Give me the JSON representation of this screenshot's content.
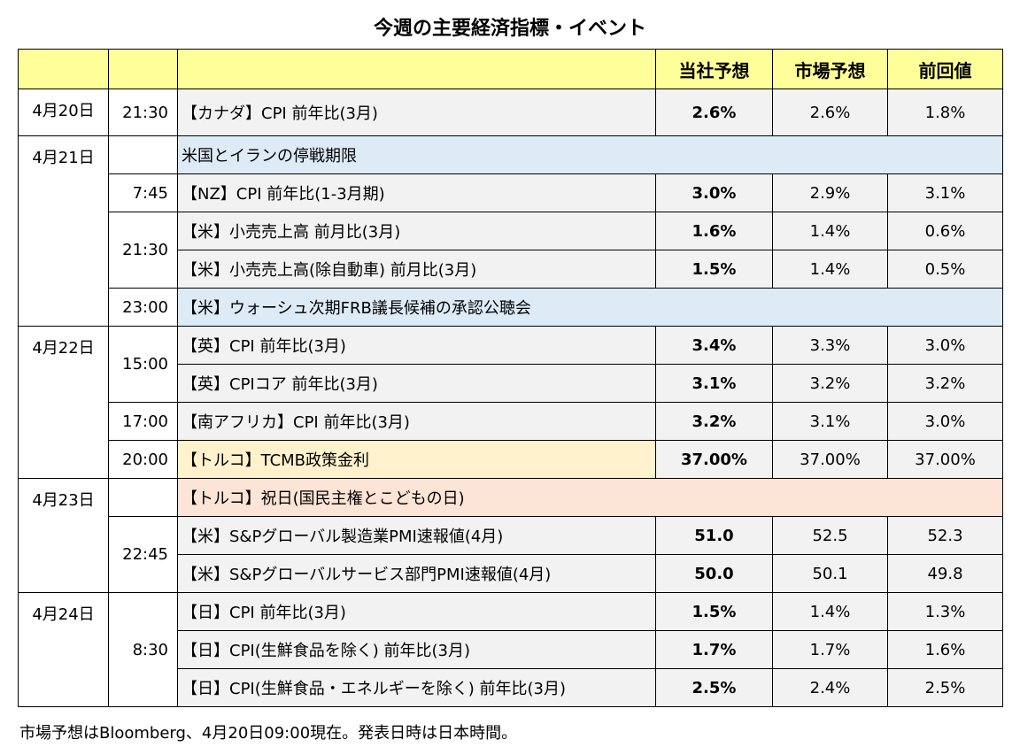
{
  "title": "今週の主要経済指標・イベント",
  "headers": [
    "",
    "",
    "",
    "当社予想",
    "市場予想",
    "前回値"
  ],
  "colors": {
    "header": "#ffff99",
    "blue": "#ddebf7",
    "turkey": "#fff2cc",
    "holiday": "#fce4d6",
    "cell": "#f2f2f2"
  },
  "rows": [
    {
      "date": "4月20日",
      "date_span": 1,
      "time": "21:30",
      "time_span": 1,
      "event": "【カナダ】CPI 前年比(3月)",
      "ours": "2.6%",
      "market": "2.6%",
      "prev": "1.8%"
    },
    {
      "date": "4月21日",
      "date_span": 5,
      "time": "",
      "time_span": 1,
      "event": " 米国とイランの停戦期限",
      "full": "blue"
    },
    {
      "time": "7:45",
      "time_span": 1,
      "event": "【NZ】CPI 前年比(1-3月期)",
      "ours": "3.0%",
      "market": "2.9%",
      "prev": "3.1%"
    },
    {
      "time": "21:30",
      "time_span": 2,
      "event": "【米】小売売上高 前月比(3月)",
      "ours": "1.6%",
      "market": "1.4%",
      "prev": "0.6%"
    },
    {
      "event": "【米】小売売上高(除自動車) 前月比(3月)",
      "ours": "1.5%",
      "market": "1.4%",
      "prev": "0.5%"
    },
    {
      "time": "23:00",
      "time_span": 1,
      "event": "【米】ウォーシュ次期FRB議長候補の承認公聴会",
      "full": "blue"
    },
    {
      "date": "4月22日",
      "date_span": 4,
      "time": "15:00",
      "time_span": 2,
      "event": "【英】CPI 前年比(3月)",
      "ours": "3.4%",
      "market": "3.3%",
      "prev": "3.0%"
    },
    {
      "event": "【英】CPIコア 前年比(3月)",
      "ours": "3.1%",
      "market": "3.2%",
      "prev": "3.2%"
    },
    {
      "time": "17:00",
      "time_span": 1,
      "event": "【南アフリカ】CPI 前年比(3月)",
      "ours": "3.2%",
      "market": "3.1%",
      "prev": "3.0%"
    },
    {
      "time": "20:00",
      "time_span": 1,
      "event": "【トルコ】TCMB政策金利",
      "ev_bg": "turkey",
      "ours": "37.00%",
      "market": "37.00%",
      "prev": "37.00%"
    },
    {
      "date": "4月23日",
      "date_span": 3,
      "time": "",
      "time_span": 1,
      "event": "【トルコ】祝日(国民主権とこどもの日)",
      "full": "holiday"
    },
    {
      "time": "22:45",
      "time_span": 2,
      "event": "【米】S&Pグローバル製造業PMI速報値(4月)",
      "ours": "51.0",
      "market": "52.5",
      "prev": "52.3"
    },
    {
      "event": "【米】S&Pグローバルサービス部門PMI速報値(4月)",
      "ours": "50.0",
      "market": "50.1",
      "prev": "49.8"
    },
    {
      "date": "4月24日",
      "date_span": 3,
      "time": "8:30",
      "time_span": 3,
      "event": "【日】CPI 前年比(3月)",
      "ours": "1.5%",
      "market": "1.4%",
      "prev": "1.3%"
    },
    {
      "event": "【日】CPI(生鮮食品を除く) 前年比(3月)",
      "ours": "1.7%",
      "market": "1.7%",
      "prev": "1.6%"
    },
    {
      "event": "【日】CPI(生鮮食品・エネルギーを除く) 前年比(3月)",
      "ours": "2.5%",
      "market": "2.4%",
      "prev": "2.5%"
    }
  ],
  "note": "市場予想はBloomberg、4月20日09:00現在。発表日時は日本時間。"
}
